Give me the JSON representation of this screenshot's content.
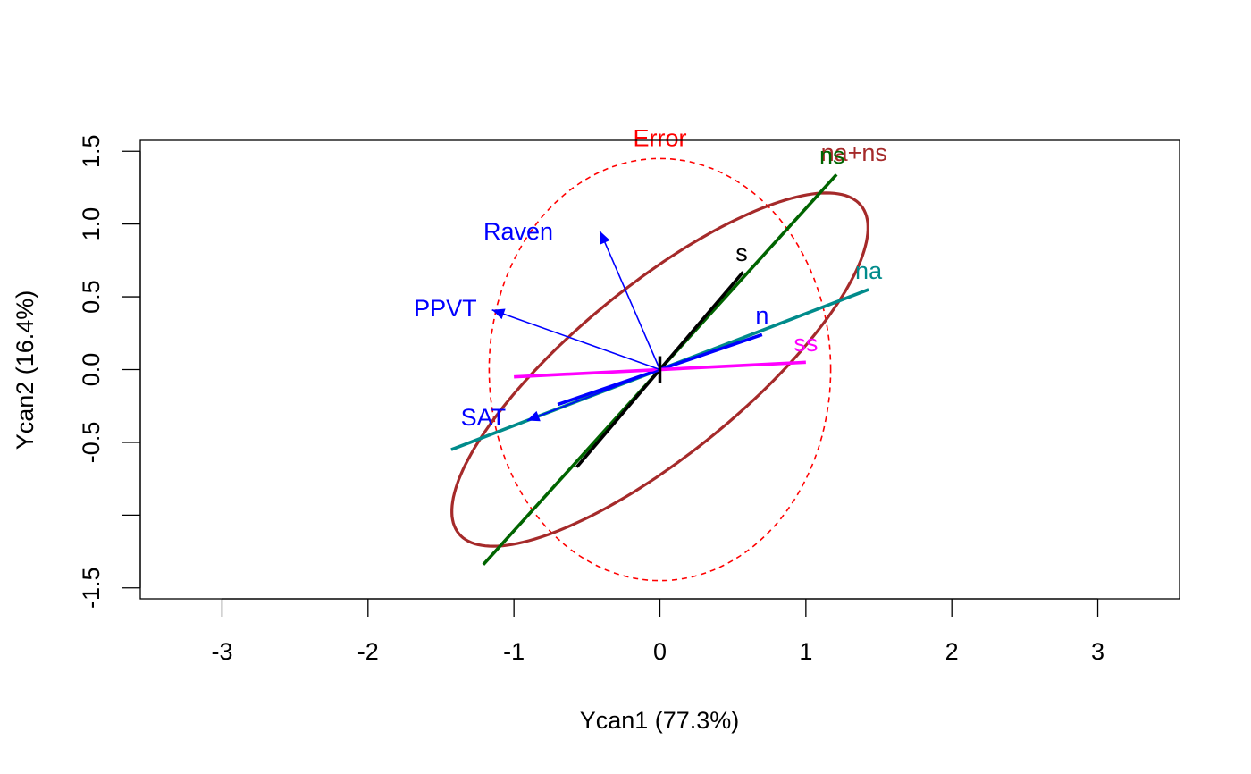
{
  "chart_data": {
    "type": "scatter",
    "xlabel": "Ycan1 (77.3%)",
    "ylabel": "Ycan2 (16.4%)",
    "xlim": [
      -3.56,
      3.56
    ],
    "ylim": [
      -1.575,
      1.575
    ],
    "x_ticks": [
      -3,
      -2,
      -1,
      0,
      1,
      2,
      3
    ],
    "x_tick_labels": [
      "-3",
      "-2",
      "-1",
      "0",
      "1",
      "2",
      "3"
    ],
    "y_ticks": [
      -1.5,
      -1.0,
      -0.5,
      0.0,
      0.5,
      1.0,
      1.5
    ],
    "y_tick_labels": [
      "-1.5",
      "",
      "-0.5",
      "0.0",
      "0.5",
      "1.0",
      "1.5"
    ],
    "grid": false,
    "ellipses": [
      {
        "name": "Error",
        "label": "Error",
        "color": "#FF0000",
        "style": "dashed",
        "center": [
          0,
          0
        ],
        "x_radius": 1.17,
        "y_radius": 1.45,
        "angle_deg": 0,
        "label_pos": [
          0,
          1.59
        ]
      },
      {
        "name": "na+ns",
        "label": "na+ns",
        "color": "#A52A2A",
        "style": "solid",
        "center": [
          0,
          0
        ],
        "x_radius": 1.78,
        "y_radius": 0.58,
        "angle_deg": 39.3,
        "label_pos": [
          1.33,
          1.49
        ]
      }
    ],
    "lines": [
      {
        "name": "ns",
        "label": "ns",
        "color": "#006400",
        "from": [
          -1.21,
          -1.34
        ],
        "to": [
          1.21,
          1.34
        ],
        "label_pos": [
          1.18,
          1.47
        ]
      },
      {
        "name": "na",
        "label": "na",
        "color": "#008B8B",
        "from": [
          -1.43,
          -0.55
        ],
        "to": [
          1.43,
          0.55
        ],
        "label_pos": [
          1.43,
          0.68
        ]
      },
      {
        "name": "s",
        "label": "s",
        "color": "#000000",
        "from": [
          -0.57,
          -0.67
        ],
        "to": [
          0.57,
          0.67
        ],
        "label_pos": [
          0.56,
          0.8
        ]
      },
      {
        "name": "n",
        "label": "n",
        "color": "#0000FF",
        "from": [
          -0.7,
          -0.24
        ],
        "to": [
          0.7,
          0.24
        ],
        "label_pos": [
          0.7,
          0.37
        ]
      },
      {
        "name": "ss",
        "label": "ss",
        "color": "#FF00FF",
        "from": [
          -1.0,
          -0.05
        ],
        "to": [
          1.0,
          0.05
        ],
        "label_pos": [
          1.0,
          0.18
        ]
      }
    ],
    "vectors": [
      {
        "name": "Raven",
        "label": "Raven",
        "color": "#0000FF",
        "x": -0.41,
        "y": 0.95,
        "label_pos": [
          -0.97,
          0.95
        ]
      },
      {
        "name": "PPVT",
        "label": "PPVT",
        "color": "#0000FF",
        "x": -1.15,
        "y": 0.41,
        "label_pos": [
          -1.47,
          0.42
        ]
      },
      {
        "name": "SAT",
        "label": "SAT",
        "color": "#0000FF",
        "x": -0.91,
        "y": -0.35,
        "label_pos": [
          -1.21,
          -0.33
        ]
      }
    ],
    "center_marker": {
      "x": 0,
      "y": 0,
      "color": "#000000"
    }
  }
}
